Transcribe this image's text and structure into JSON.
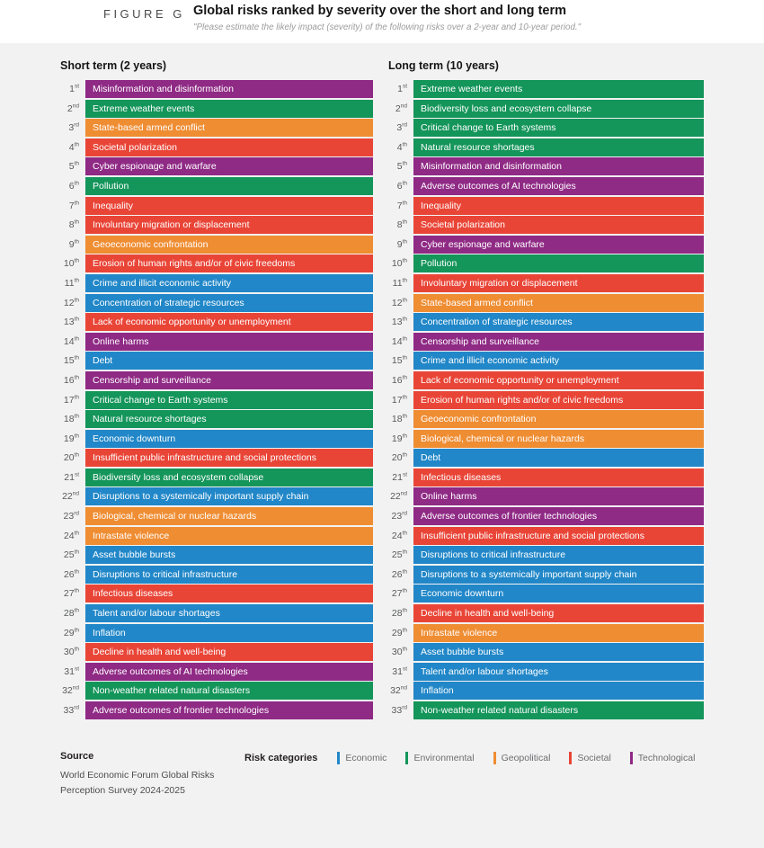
{
  "figure": {
    "label": "FIGURE G",
    "title": "Global risks ranked by severity over the short and long term",
    "subtitle": "\"Please estimate the likely impact (severity) of the following risks over a 2-year and 10-year period.\""
  },
  "categories": {
    "economic": {
      "label": "Economic",
      "color": "#2187c8"
    },
    "environmental": {
      "label": "Environmental",
      "color": "#14955a"
    },
    "geopolitical": {
      "label": "Geopolitical",
      "color": "#ef8d33"
    },
    "societal": {
      "label": "Societal",
      "color": "#e94537"
    },
    "technological": {
      "label": "Technological",
      "color": "#8f2a85"
    }
  },
  "legend": {
    "title": "Risk categories",
    "items": [
      "economic",
      "environmental",
      "geopolitical",
      "societal",
      "technological"
    ]
  },
  "source": {
    "title": "Source",
    "line1": "World Economic Forum Global Risks",
    "line2": "Perception Survey 2024-2025"
  },
  "chart_data": {
    "type": "bar",
    "title": "Global risks ranked by severity over the short and long term",
    "legend_entries": [
      "Economic",
      "Environmental",
      "Geopolitical",
      "Societal",
      "Technological"
    ],
    "columns": [
      {
        "header": "Short term (2 years)",
        "items": [
          {
            "rank": "1st",
            "label": "Misinformation and disinformation",
            "category": "technological"
          },
          {
            "rank": "2nd",
            "label": "Extreme weather events",
            "category": "environmental"
          },
          {
            "rank": "3rd",
            "label": "State-based armed conflict",
            "category": "geopolitical"
          },
          {
            "rank": "4th",
            "label": "Societal polarization",
            "category": "societal"
          },
          {
            "rank": "5th",
            "label": "Cyber espionage and warfare",
            "category": "technological"
          },
          {
            "rank": "6th",
            "label": "Pollution",
            "category": "environmental"
          },
          {
            "rank": "7th",
            "label": "Inequality",
            "category": "societal"
          },
          {
            "rank": "8th",
            "label": "Involuntary migration or displacement",
            "category": "societal"
          },
          {
            "rank": "9th",
            "label": "Geoeconomic confrontation",
            "category": "geopolitical"
          },
          {
            "rank": "10th",
            "label": "Erosion of human rights and/or of civic freedoms",
            "category": "societal"
          },
          {
            "rank": "11th",
            "label": "Crime and illicit economic activity",
            "category": "economic"
          },
          {
            "rank": "12th",
            "label": "Concentration of strategic resources",
            "category": "economic"
          },
          {
            "rank": "13th",
            "label": "Lack of economic opportunity or unemployment",
            "category": "societal"
          },
          {
            "rank": "14th",
            "label": "Online harms",
            "category": "technological"
          },
          {
            "rank": "15th",
            "label": "Debt",
            "category": "economic"
          },
          {
            "rank": "16th",
            "label": "Censorship and surveillance",
            "category": "technological"
          },
          {
            "rank": "17th",
            "label": "Critical change to Earth systems",
            "category": "environmental"
          },
          {
            "rank": "18th",
            "label": "Natural resource shortages",
            "category": "environmental"
          },
          {
            "rank": "19th",
            "label": "Economic downturn",
            "category": "economic"
          },
          {
            "rank": "20th",
            "label": "Insufficient public infrastructure and social protections",
            "category": "societal"
          },
          {
            "rank": "21st",
            "label": "Biodiversity loss and ecosystem collapse",
            "category": "environmental"
          },
          {
            "rank": "22nd",
            "label": "Disruptions to a systemically important supply chain",
            "category": "economic"
          },
          {
            "rank": "23rd",
            "label": "Biological, chemical or nuclear hazards",
            "category": "geopolitical"
          },
          {
            "rank": "24th",
            "label": "Intrastate violence",
            "category": "geopolitical"
          },
          {
            "rank": "25th",
            "label": "Asset bubble bursts",
            "category": "economic"
          },
          {
            "rank": "26th",
            "label": "Disruptions to critical infrastructure",
            "category": "economic"
          },
          {
            "rank": "27th",
            "label": "Infectious diseases",
            "category": "societal"
          },
          {
            "rank": "28th",
            "label": "Talent and/or labour shortages",
            "category": "economic"
          },
          {
            "rank": "29th",
            "label": "Inflation",
            "category": "economic"
          },
          {
            "rank": "30th",
            "label": "Decline in health and well-being",
            "category": "societal"
          },
          {
            "rank": "31st",
            "label": "Adverse outcomes of AI technologies",
            "category": "technological"
          },
          {
            "rank": "32nd",
            "label": "Non-weather related natural disasters",
            "category": "environmental"
          },
          {
            "rank": "33rd",
            "label": "Adverse outcomes of frontier technologies",
            "category": "technological"
          }
        ]
      },
      {
        "header": "Long term (10 years)",
        "items": [
          {
            "rank": "1st",
            "label": "Extreme weather events",
            "category": "environmental"
          },
          {
            "rank": "2nd",
            "label": "Biodiversity loss and ecosystem collapse",
            "category": "environmental"
          },
          {
            "rank": "3rd",
            "label": "Critical change to Earth systems",
            "category": "environmental"
          },
          {
            "rank": "4th",
            "label": "Natural resource shortages",
            "category": "environmental"
          },
          {
            "rank": "5th",
            "label": "Misinformation and disinformation",
            "category": "technological"
          },
          {
            "rank": "6th",
            "label": "Adverse outcomes of AI technologies",
            "category": "technological"
          },
          {
            "rank": "7th",
            "label": "Inequality",
            "category": "societal"
          },
          {
            "rank": "8th",
            "label": "Societal polarization",
            "category": "societal"
          },
          {
            "rank": "9th",
            "label": "Cyber espionage and warfare",
            "category": "technological"
          },
          {
            "rank": "10th",
            "label": "Pollution",
            "category": "environmental"
          },
          {
            "rank": "11th",
            "label": "Involuntary migration or displacement",
            "category": "societal"
          },
          {
            "rank": "12th",
            "label": "State-based armed conflict",
            "category": "geopolitical"
          },
          {
            "rank": "13th",
            "label": "Concentration of strategic resources",
            "category": "economic"
          },
          {
            "rank": "14th",
            "label": "Censorship and surveillance",
            "category": "technological"
          },
          {
            "rank": "15th",
            "label": "Crime and illicit economic activity",
            "category": "economic"
          },
          {
            "rank": "16th",
            "label": "Lack of economic opportunity or unemployment",
            "category": "societal"
          },
          {
            "rank": "17th",
            "label": "Erosion of human rights and/or of civic freedoms",
            "category": "societal"
          },
          {
            "rank": "18th",
            "label": "Geoeconomic confrontation",
            "category": "geopolitical"
          },
          {
            "rank": "19th",
            "label": "Biological, chemical or nuclear hazards",
            "category": "geopolitical"
          },
          {
            "rank": "20th",
            "label": "Debt",
            "category": "economic"
          },
          {
            "rank": "21st",
            "label": "Infectious diseases",
            "category": "societal"
          },
          {
            "rank": "22nd",
            "label": "Online harms",
            "category": "technological"
          },
          {
            "rank": "23rd",
            "label": "Adverse outcomes of frontier technologies",
            "category": "technological"
          },
          {
            "rank": "24th",
            "label": "Insufficient public infrastructure and social protections",
            "category": "societal"
          },
          {
            "rank": "25th",
            "label": "Disruptions to critical infrastructure",
            "category": "economic"
          },
          {
            "rank": "26th",
            "label": "Disruptions to a systemically important supply chain",
            "category": "economic"
          },
          {
            "rank": "27th",
            "label": "Economic downturn",
            "category": "economic"
          },
          {
            "rank": "28th",
            "label": "Decline in health and well-being",
            "category": "societal"
          },
          {
            "rank": "29th",
            "label": "Intrastate violence",
            "category": "geopolitical"
          },
          {
            "rank": "30th",
            "label": "Asset bubble bursts",
            "category": "economic"
          },
          {
            "rank": "31st",
            "label": "Talent and/or labour shortages",
            "category": "economic"
          },
          {
            "rank": "32nd",
            "label": "Inflation",
            "category": "economic"
          },
          {
            "rank": "33rd",
            "label": "Non-weather related natural disasters",
            "category": "environmental"
          }
        ]
      }
    ]
  }
}
